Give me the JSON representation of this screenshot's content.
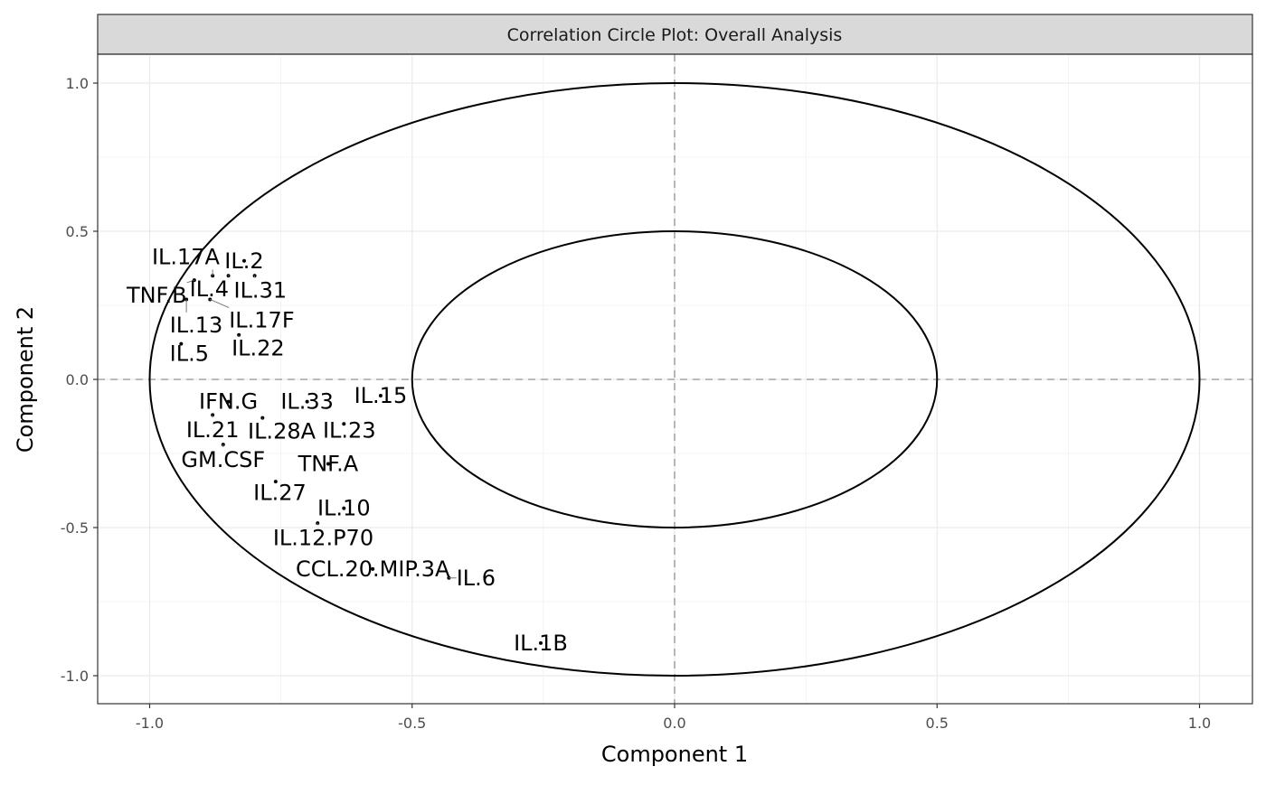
{
  "chart_data": {
    "type": "scatter",
    "title": "Correlation Circle Plot: Overall Analysis",
    "xlabel": "Component  1",
    "ylabel": "Component  2",
    "xlim": [
      -1.1,
      1.1
    ],
    "ylim": [
      -1.1,
      1.1
    ],
    "xticks": [
      "-1.0",
      "-0.5",
      "0.0",
      "0.5",
      "1.0"
    ],
    "yticks": [
      "1.0",
      "0.5",
      "0.0",
      "-0.5",
      "-1.0"
    ],
    "tick_values": [
      -1.0,
      -0.5,
      0.0,
      0.5,
      1.0
    ],
    "circles": [
      1.0,
      0.5
    ],
    "grid": true,
    "points": [
      {
        "label": "IL.2",
        "x": -0.82,
        "y": 0.4
      },
      {
        "label": "IL.31",
        "x": -0.8,
        "y": 0.35
      },
      {
        "label": "IL.4",
        "x": -0.85,
        "y": 0.35
      },
      {
        "label": "IL.17A",
        "x": -0.88,
        "y": 0.35
      },
      {
        "label": "TNF.B",
        "x": -0.915,
        "y": 0.335
      },
      {
        "label": "IL.13",
        "x": -0.93,
        "y": 0.27
      },
      {
        "label": "IL.17F",
        "x": -0.885,
        "y": 0.27
      },
      {
        "label": "IL.5",
        "x": -0.94,
        "y": 0.12
      },
      {
        "label": "IL.22",
        "x": -0.83,
        "y": 0.15
      },
      {
        "label": "IFN.G",
        "x": -0.85,
        "y": -0.075
      },
      {
        "label": "IL.33",
        "x": -0.7,
        "y": -0.075
      },
      {
        "label": "IL.15",
        "x": -0.56,
        "y": -0.055
      },
      {
        "label": "IL.21",
        "x": -0.88,
        "y": -0.12
      },
      {
        "label": "IL.28A",
        "x": -0.785,
        "y": -0.13
      },
      {
        "label": "IL.23",
        "x": -0.63,
        "y": -0.15
      },
      {
        "label": "GM.CSF",
        "x": -0.86,
        "y": -0.22
      },
      {
        "label": "TNF.A",
        "x": -0.66,
        "y": -0.285
      },
      {
        "label": "IL.27",
        "x": -0.76,
        "y": -0.345
      },
      {
        "label": "IL.10",
        "x": -0.63,
        "y": -0.435
      },
      {
        "label": "IL.12.P70",
        "x": -0.68,
        "y": -0.485
      },
      {
        "label": "CCL.20.MIP.3A",
        "x": -0.575,
        "y": -0.64
      },
      {
        "label": "IL.6",
        "x": -0.43,
        "y": -0.67
      },
      {
        "label": "IL.1B",
        "x": -0.255,
        "y": -0.89
      }
    ]
  }
}
